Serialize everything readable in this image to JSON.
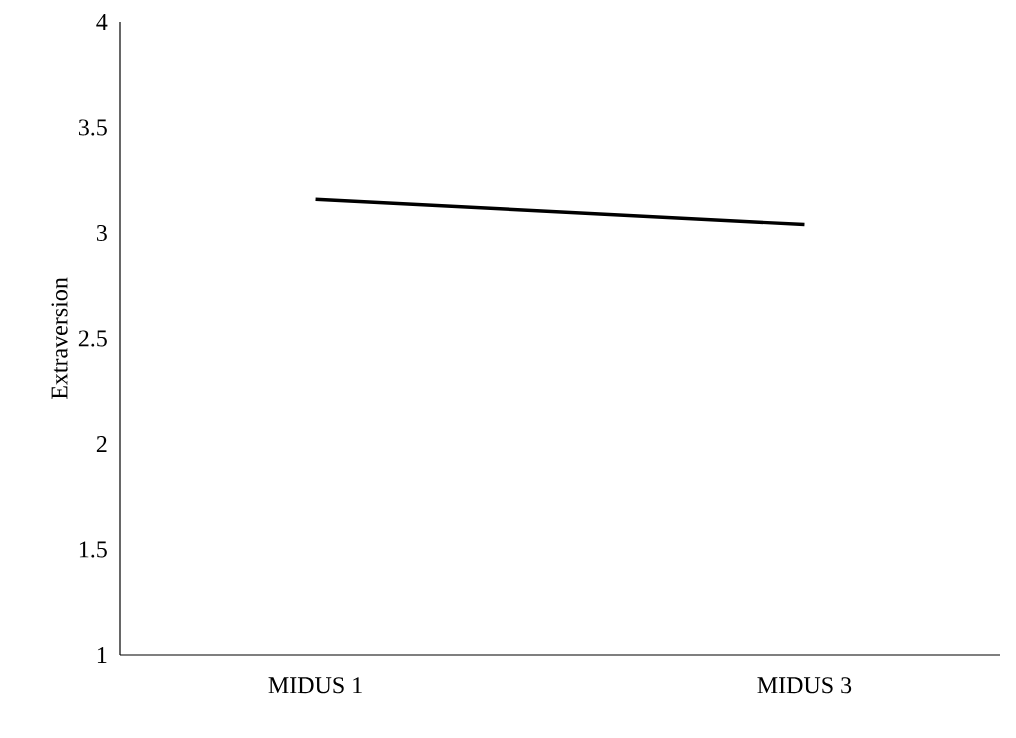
{
  "chart_data": {
    "type": "line",
    "ylabel": "Extraversion",
    "categories": [
      "MIDUS 1",
      "MIDUS 3"
    ],
    "values": [
      3.16,
      3.04
    ],
    "color": "#000000",
    "marker": "none",
    "ylim": [
      1,
      4
    ],
    "yticks": [
      1,
      1.5,
      2,
      2.5,
      3,
      3.5,
      4
    ]
  }
}
